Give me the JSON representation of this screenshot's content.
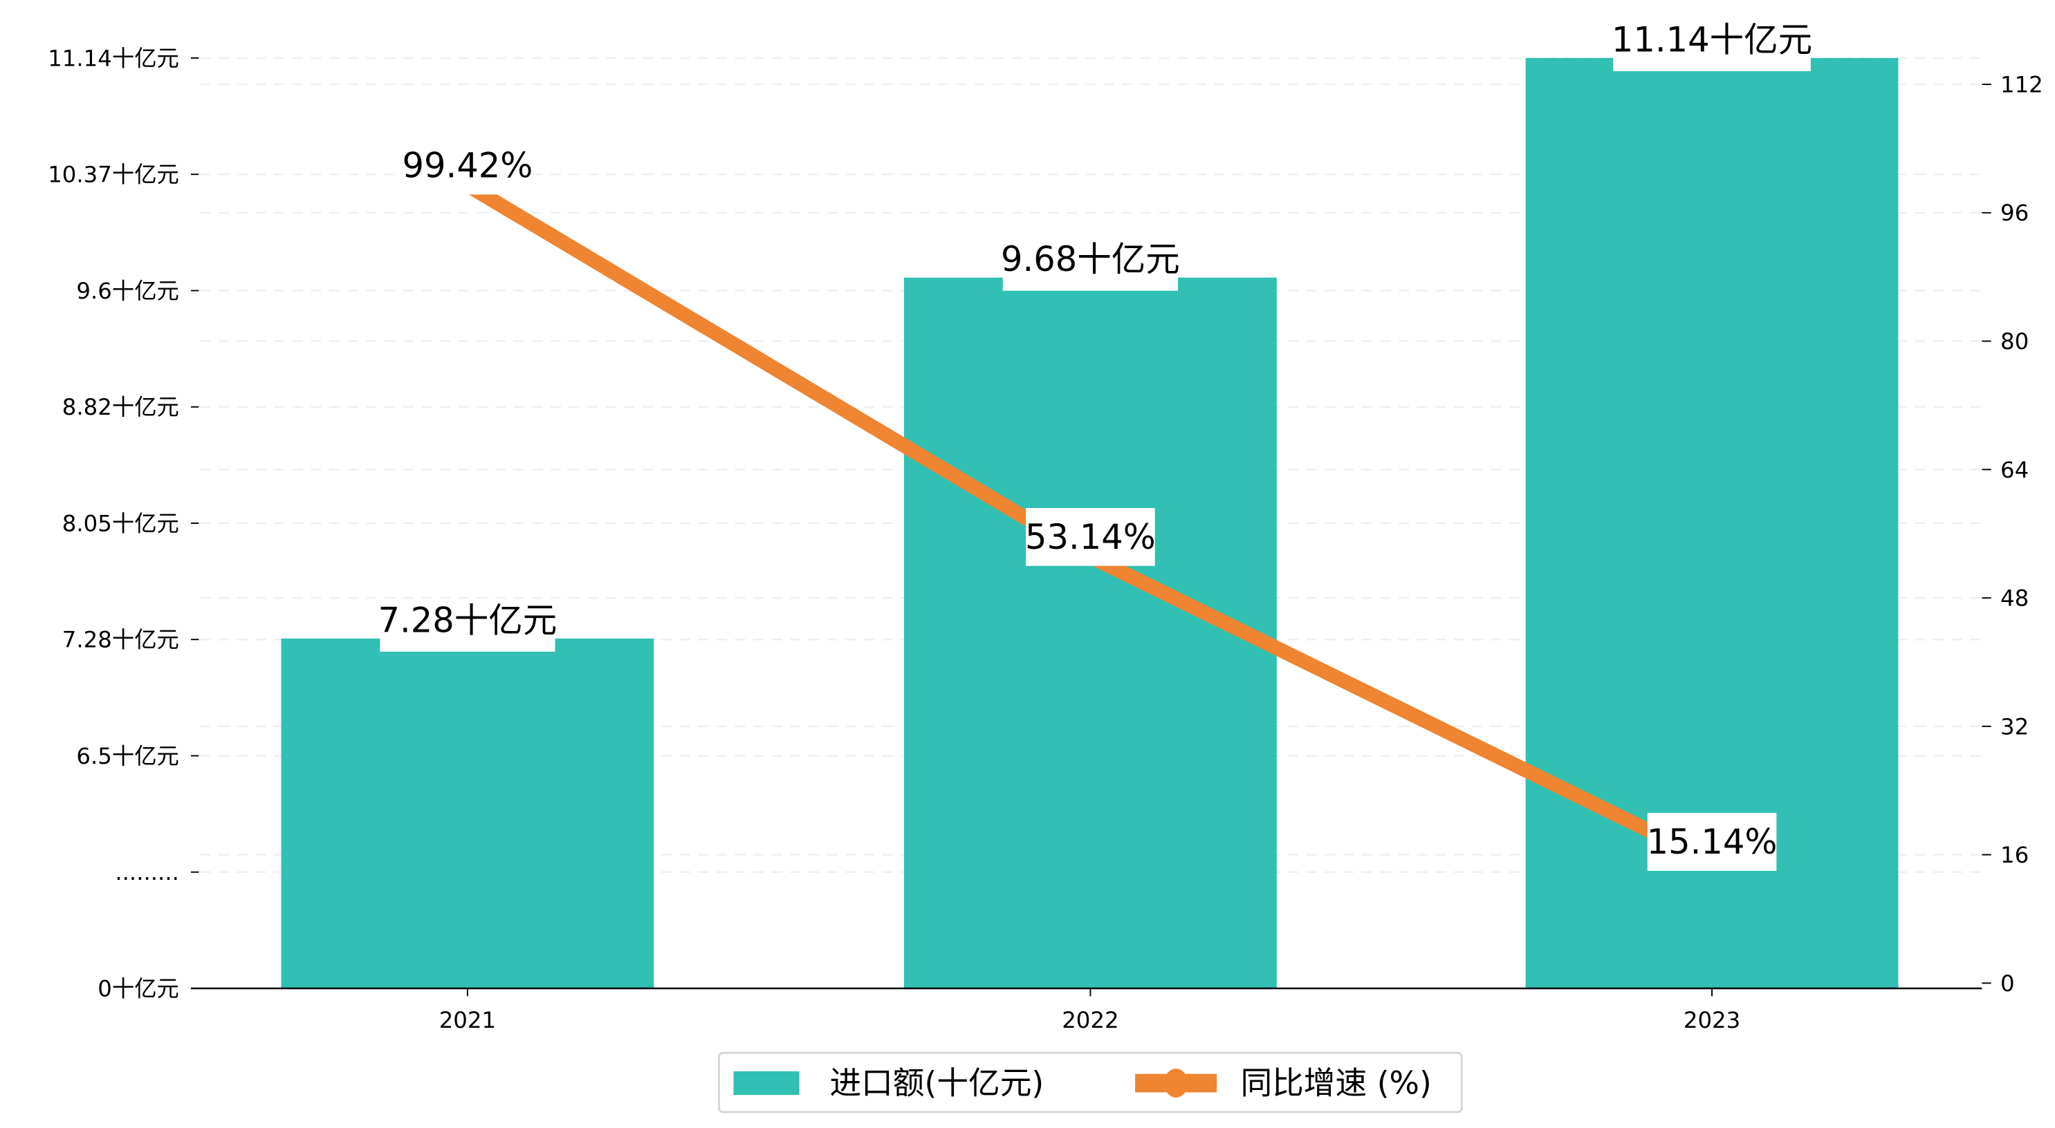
{
  "chart_data": {
    "type": "bar+line",
    "title": "",
    "categories": [
      "2021",
      "2022",
      "2023"
    ],
    "series": [
      {
        "name": "进口额(十亿元)",
        "type": "bar",
        "axis": "left",
        "color": "#31c0b3",
        "values": [
          7.28,
          9.68,
          11.14
        ],
        "labels": [
          "7.28十亿元",
          "9.68十亿元",
          "11.14十亿元"
        ]
      },
      {
        "name": "同比增速 (%)",
        "type": "line",
        "axis": "right",
        "color": "#ef8431",
        "values": [
          99.42,
          53.14,
          15.14
        ],
        "labels": [
          "99.42%",
          "53.14%",
          "15.14%"
        ]
      }
    ],
    "left_axis": {
      "broken": true,
      "tick_labels": [
        "0十亿元",
        ".........",
        "6.5十亿元",
        "7.28十亿元",
        "8.05十亿元",
        "8.82十亿元",
        "9.6十亿元",
        "10.37十亿元",
        "11.14十亿元"
      ],
      "tick_values": [
        0,
        null,
        6.5,
        7.28,
        8.05,
        8.82,
        9.6,
        10.37,
        11.14
      ]
    },
    "right_axis": {
      "ylim": [
        0,
        112
      ],
      "ticks": [
        0,
        16,
        32,
        48,
        64,
        80,
        96,
        112
      ],
      "tick_labels": [
        "0",
        "16",
        "32",
        "48",
        "64",
        "80",
        "96",
        "112"
      ]
    },
    "grid": true,
    "legend": {
      "placement": "bottom-center",
      "entries": [
        "进口额(十亿元)",
        "同比增速 (%)"
      ]
    }
  }
}
